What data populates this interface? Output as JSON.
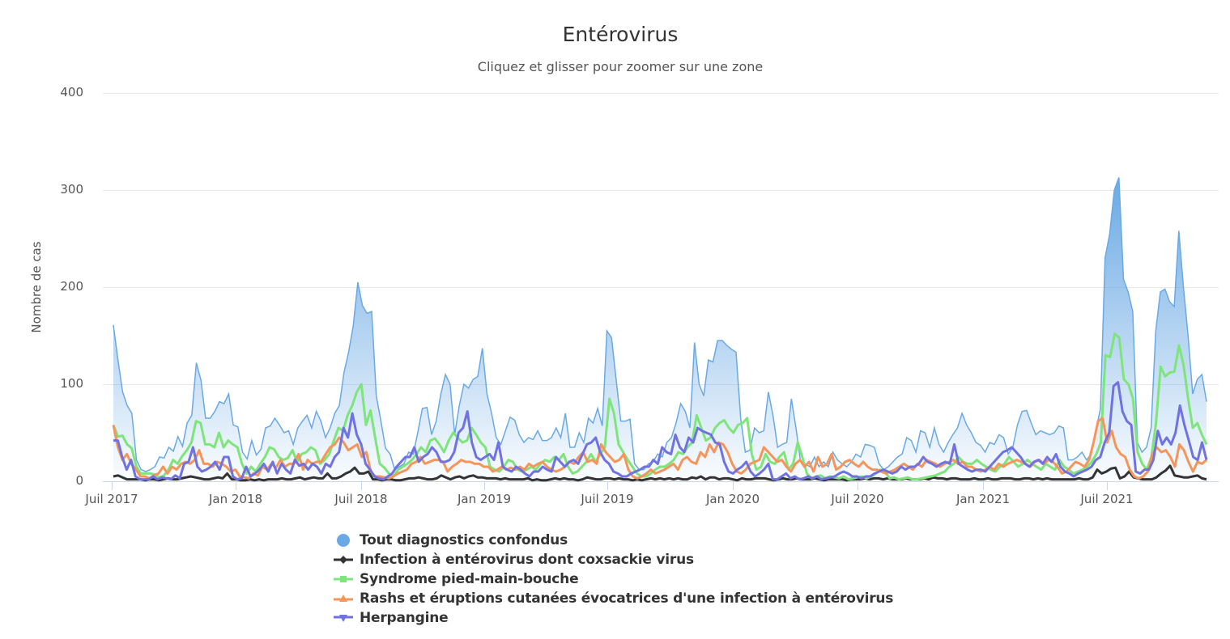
{
  "title": "Entérovirus",
  "subtitle": "Cliquez et glisser pour zoomer sur une zone",
  "y_axis": {
    "label": "Nombre de cas",
    "ticks": [
      "0",
      "100",
      "200",
      "300",
      "400"
    ]
  },
  "x_axis": {
    "ticks": [
      "Juil 2017",
      "Jan 2018",
      "Juil 2018",
      "Jan 2019",
      "Juil 2019",
      "Jan 2020",
      "Juil 2020",
      "Jan 2021",
      "Juil 2021"
    ]
  },
  "legend": [
    {
      "label": "Tout diagnostics confondus",
      "color": "#6aa9e4",
      "symbol": "circle"
    },
    {
      "label": "Infection à entérovirus dont coxsackie virus",
      "color": "#333333",
      "symbol": "diamond"
    },
    {
      "label": "Syndrome pied-main-bouche",
      "color": "#7ee57a",
      "symbol": "square"
    },
    {
      "label": "Rashs et éruptions cutanées évocatrices d'une infection à entérovirus",
      "color": "#f6955a",
      "symbol": "triangle"
    },
    {
      "label": "Herpangine",
      "color": "#6f72e0",
      "symbol": "triangle-down"
    }
  ],
  "chart_data": {
    "type": "line",
    "title": "Entérovirus",
    "subtitle": "Cliquez et glisser pour zoomer sur une zone",
    "xlabel": "",
    "ylabel": "Nombre de cas",
    "ylim": [
      0,
      400
    ],
    "grid": true,
    "legend_position": "bottom",
    "x_start": "Juil 2017",
    "x_end": "Nov 2021",
    "x_frequency": "weekly",
    "x_tick_labels": [
      "Juil 2017",
      "Jan 2018",
      "Juil 2018",
      "Jan 2019",
      "Juil 2019",
      "Jan 2020",
      "Juil 2020",
      "Jan 2021",
      "Juil 2021"
    ],
    "series": [
      {
        "name": "Tout diagnostics confondus",
        "type": "area",
        "color": "#6aa9e4",
        "values": [
          161,
          125,
          92,
          78,
          70,
          22,
          12,
          10,
          12,
          15,
          25,
          24,
          35,
          31,
          46,
          36,
          60,
          68,
          122,
          104,
          65,
          65,
          72,
          82,
          80,
          90,
          58,
          56,
          30,
          23,
          42,
          27,
          33,
          55,
          57,
          65,
          58,
          50,
          52,
          38,
          55,
          62,
          68,
          55,
          72,
          62,
          45,
          55,
          70,
          78,
          112,
          133,
          160,
          205,
          181,
          173,
          175,
          88,
          62,
          34,
          28,
          12,
          15,
          18,
          30,
          28,
          50,
          75,
          76,
          48,
          62,
          90,
          110,
          100,
          48,
          78,
          100,
          96,
          105,
          108,
          137,
          90,
          70,
          45,
          38,
          52,
          66,
          63,
          48,
          40,
          45,
          43,
          52,
          42,
          42,
          45,
          55,
          45,
          70,
          35,
          35,
          50,
          40,
          65,
          60,
          75,
          57,
          155,
          148,
          105,
          62,
          62,
          64,
          18,
          12,
          12,
          18,
          20,
          28,
          25,
          40,
          45,
          60,
          80,
          72,
          55,
          143,
          100,
          88,
          125,
          123,
          145,
          145,
          140,
          136,
          133,
          65,
          30,
          32,
          55,
          50,
          52,
          92,
          68,
          35,
          38,
          40,
          85,
          55,
          20,
          18,
          15,
          25,
          15,
          20,
          15,
          30,
          22,
          18,
          15,
          20,
          28,
          25,
          38,
          37,
          35,
          18,
          12,
          15,
          20,
          25,
          28,
          45,
          42,
          30,
          52,
          50,
          35,
          55,
          38,
          30,
          40,
          48,
          55,
          70,
          58,
          50,
          40,
          37,
          30,
          40,
          38,
          48,
          45,
          28,
          35,
          58,
          72,
          73,
          60,
          48,
          52,
          50,
          48,
          50,
          57,
          55,
          22,
          22,
          25,
          30,
          22,
          28,
          52,
          75,
          230,
          255,
          300,
          313,
          208,
          195,
          175,
          40,
          30,
          35,
          55,
          155,
          195,
          198,
          185,
          180,
          258,
          200,
          150,
          90,
          105,
          110,
          82
        ]
      },
      {
        "name": "Infection à entérovirus dont coxsackie virus",
        "type": "line",
        "color": "#333333",
        "values": [
          5,
          6,
          4,
          2,
          2,
          2,
          2,
          1,
          2,
          2,
          1,
          2,
          3,
          2,
          2,
          3,
          4,
          5,
          4,
          3,
          2,
          2,
          3,
          4,
          3,
          8,
          2,
          2,
          1,
          1,
          2,
          1,
          2,
          1,
          2,
          2,
          2,
          3,
          2,
          2,
          3,
          4,
          2,
          3,
          4,
          3,
          3,
          8,
          3,
          3,
          5,
          8,
          10,
          14,
          8,
          8,
          10,
          2,
          2,
          1,
          2,
          2,
          1,
          1,
          2,
          3,
          3,
          4,
          3,
          2,
          2,
          3,
          6,
          4,
          2,
          4,
          5,
          3,
          5,
          6,
          4,
          4,
          3,
          3,
          3,
          2,
          3,
          2,
          2,
          2,
          2,
          3,
          1,
          2,
          1,
          1,
          2,
          3,
          2,
          3,
          2,
          2,
          1,
          2,
          4,
          3,
          2,
          2,
          3,
          3,
          2,
          3,
          2,
          2,
          1,
          2,
          1,
          2,
          3,
          2,
          3,
          2,
          3,
          2,
          3,
          2,
          2,
          4,
          3,
          5,
          2,
          4,
          4,
          2,
          3,
          3,
          2,
          1,
          3,
          2,
          2,
          3,
          3,
          3,
          2,
          1,
          2,
          3,
          2,
          2,
          3,
          2,
          2,
          2,
          3,
          2,
          1,
          2,
          2,
          2,
          2,
          1,
          2,
          2,
          2,
          3,
          2,
          3,
          3,
          2,
          3,
          2,
          2,
          2,
          3,
          2,
          2,
          2,
          3,
          2,
          4,
          3,
          3,
          2,
          3,
          3,
          2,
          2,
          2,
          3,
          2,
          2,
          3,
          2,
          2,
          3,
          3,
          3,
          2,
          2,
          3,
          3,
          2,
          3,
          2,
          3,
          2,
          2,
          2,
          2,
          2,
          2,
          3,
          2,
          2,
          4,
          12,
          8,
          10,
          13,
          14,
          3,
          5,
          10,
          4,
          3,
          2,
          2,
          2,
          4,
          8,
          11,
          16,
          6,
          5,
          4,
          4,
          5,
          6,
          3,
          2
        ]
      },
      {
        "name": "Syndrome pied-main-bouche",
        "type": "line",
        "color": "#7ee57a",
        "values": [
          58,
          46,
          47,
          38,
          34,
          15,
          8,
          8,
          8,
          7,
          4,
          6,
          12,
          22,
          18,
          26,
          32,
          40,
          62,
          60,
          38,
          38,
          35,
          50,
          35,
          42,
          38,
          35,
          18,
          8,
          15,
          10,
          18,
          25,
          35,
          33,
          25,
          22,
          24,
          32,
          20,
          28,
          30,
          35,
          32,
          18,
          22,
          28,
          42,
          55,
          52,
          68,
          78,
          92,
          100,
          58,
          73,
          45,
          18,
          14,
          8,
          5,
          12,
          15,
          18,
          22,
          28,
          35,
          30,
          42,
          44,
          38,
          30,
          42,
          50,
          45,
          40,
          42,
          55,
          48,
          40,
          35,
          15,
          12,
          10,
          15,
          22,
          20,
          12,
          10,
          12,
          15,
          12,
          18,
          22,
          20,
          25,
          22,
          28,
          15,
          8,
          10,
          15,
          20,
          28,
          20,
          28,
          35,
          85,
          70,
          38,
          30,
          22,
          15,
          8,
          5,
          5,
          8,
          12,
          15,
          15,
          18,
          22,
          30,
          28,
          35,
          40,
          68,
          55,
          42,
          45,
          55,
          60,
          63,
          55,
          50,
          58,
          60,
          65,
          28,
          12,
          15,
          28,
          20,
          18,
          25,
          30,
          12,
          18,
          40,
          25,
          8,
          3,
          5,
          6,
          3,
          5,
          4,
          3,
          5,
          2,
          3,
          4,
          5,
          3,
          5,
          8,
          12,
          10,
          3,
          4,
          2,
          3,
          4,
          2,
          2,
          3,
          4,
          5,
          6,
          8,
          10,
          15,
          18,
          25,
          20,
          18,
          18,
          22,
          18,
          15,
          12,
          10,
          15,
          18,
          25,
          20,
          15,
          18,
          22,
          18,
          15,
          12,
          18,
          15,
          12,
          22,
          15,
          12,
          8,
          10,
          12,
          15,
          20,
          28,
          40,
          130,
          128,
          152,
          148,
          105,
          100,
          85,
          30,
          18,
          12,
          25,
          60,
          118,
          108,
          112,
          113,
          140,
          120,
          85,
          55,
          60,
          48,
          38
        ]
      },
      {
        "name": "Rashs et éruptions cutanées évocatrices d'une infection à entérovirus",
        "type": "line",
        "color": "#f6955a",
        "values": [
          58,
          35,
          22,
          28,
          18,
          12,
          5,
          5,
          3,
          6,
          8,
          15,
          8,
          15,
          12,
          18,
          20,
          18,
          22,
          32,
          18,
          18,
          15,
          20,
          18,
          15,
          10,
          12,
          5,
          4,
          3,
          8,
          6,
          15,
          12,
          18,
          14,
          22,
          15,
          18,
          18,
          28,
          12,
          22,
          18,
          20,
          20,
          28,
          35,
          38,
          45,
          40,
          32,
          35,
          38,
          25,
          30,
          10,
          5,
          5,
          4,
          3,
          5,
          8,
          10,
          12,
          18,
          20,
          25,
          18,
          20,
          22,
          22,
          20,
          10,
          15,
          18,
          22,
          20,
          20,
          18,
          18,
          15,
          15,
          10,
          12,
          15,
          12,
          14,
          12,
          15,
          12,
          18,
          15,
          18,
          20,
          15,
          12,
          10,
          12,
          15,
          20,
          18,
          25,
          30,
          20,
          22,
          18,
          38,
          30,
          25,
          20,
          22,
          28,
          12,
          5,
          3,
          5,
          8,
          12,
          8,
          10,
          12,
          15,
          18,
          12,
          22,
          25,
          20,
          18,
          30,
          25,
          38,
          30,
          40,
          38,
          30,
          18,
          10,
          8,
          12,
          18,
          20,
          22,
          35,
          30,
          25,
          20,
          22,
          15,
          10,
          18,
          22,
          15,
          20,
          10,
          25,
          15,
          18,
          28,
          12,
          15,
          20,
          22,
          18,
          15,
          20,
          15,
          12,
          12,
          10,
          8,
          10,
          12,
          15,
          18,
          15,
          12,
          18,
          15,
          22,
          20,
          18,
          15,
          18,
          20,
          22,
          18,
          20,
          15,
          15,
          12,
          10,
          12,
          15,
          12,
          18,
          15,
          18,
          20,
          22,
          20,
          18,
          15,
          20,
          22,
          18,
          22,
          20,
          15,
          8,
          10,
          15,
          20,
          18,
          15,
          22,
          40,
          62,
          65,
          40,
          52,
          35,
          28,
          25,
          12,
          5,
          3,
          5,
          10,
          28,
          35,
          30,
          32,
          25,
          15,
          38,
          32,
          20,
          10,
          20,
          18,
          22
        ]
      },
      {
        "name": "Herpangine",
        "type": "line",
        "color": "#6f72e0",
        "values": [
          42,
          42,
          25,
          12,
          22,
          5,
          2,
          2,
          2,
          5,
          2,
          4,
          3,
          2,
          6,
          3,
          18,
          20,
          35,
          15,
          10,
          12,
          15,
          20,
          12,
          25,
          25,
          5,
          2,
          3,
          15,
          5,
          8,
          12,
          18,
          10,
          20,
          8,
          18,
          12,
          8,
          22,
          16,
          18,
          12,
          18,
          15,
          8,
          18,
          15,
          25,
          30,
          55,
          45,
          70,
          48,
          38,
          18,
          12,
          5,
          3,
          2,
          5,
          8,
          15,
          20,
          25,
          25,
          35,
          20,
          25,
          28,
          35,
          30,
          20,
          20,
          22,
          30,
          50,
          55,
          72,
          40,
          25,
          22,
          25,
          28,
          22,
          40,
          15,
          12,
          10,
          15,
          12,
          8,
          5,
          10,
          10,
          15,
          12,
          10,
          25,
          20,
          15,
          20,
          22,
          18,
          28,
          38,
          40,
          45,
          30,
          22,
          18,
          10,
          8,
          5,
          5,
          8,
          10,
          12,
          15,
          15,
          22,
          18,
          35,
          30,
          28,
          48,
          35,
          30,
          45,
          40,
          55,
          52,
          50,
          48,
          40,
          38,
          20,
          10,
          8,
          12,
          15,
          20,
          10,
          5,
          8,
          12,
          18,
          2,
          2,
          5,
          8,
          3,
          5,
          2,
          3,
          5,
          3,
          5,
          2,
          3,
          4,
          5,
          8,
          10,
          8,
          5,
          5,
          3,
          5,
          5,
          8,
          10,
          12,
          10,
          8,
          10,
          15,
          12,
          15,
          15,
          18,
          25,
          20,
          18,
          15,
          18,
          20,
          18,
          38,
          18,
          15,
          12,
          10,
          12,
          12,
          10,
          15,
          20,
          25,
          30,
          32,
          35,
          30,
          25,
          18,
          15,
          20,
          22,
          18,
          25,
          20,
          28,
          15,
          10,
          8,
          5,
          8,
          10,
          12,
          15,
          22,
          25,
          40,
          50,
          98,
          102,
          72,
          62,
          58,
          10,
          8,
          12,
          12,
          22,
          52,
          38,
          45,
          38,
          50,
          78,
          58,
          42,
          25,
          22,
          40,
          22
        ]
      }
    ]
  }
}
